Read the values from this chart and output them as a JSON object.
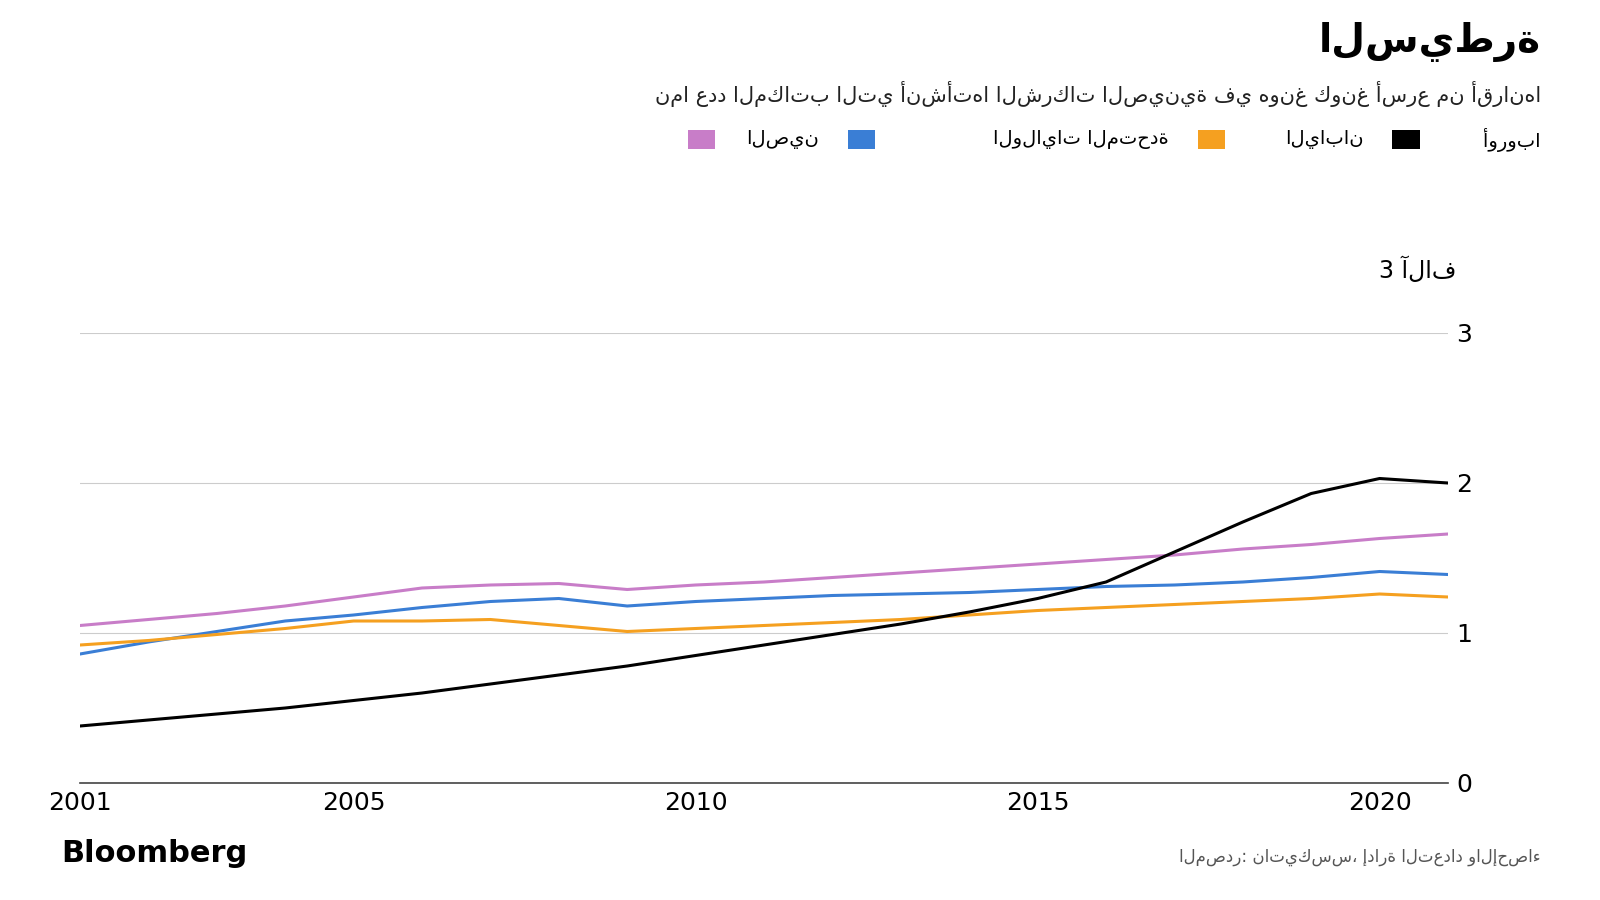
{
  "title": "السيطرة",
  "subtitle": "نما عدد المكاتب التي أنشأتها الشركات الصينية في هونغ كونغ أسرع من أقرانها",
  "source_text": "المصدر: ناتيكسس، إدارة التعداد والإحصاء",
  "bloomberg_text": "Bloomberg",
  "ylabel_text": "3 آلاف",
  "years": [
    2001,
    2002,
    2003,
    2004,
    2005,
    2006,
    2007,
    2008,
    2009,
    2010,
    2011,
    2012,
    2013,
    2014,
    2015,
    2016,
    2017,
    2018,
    2019,
    2020,
    2021
  ],
  "china_data": [
    0.38,
    0.42,
    0.46,
    0.5,
    0.55,
    0.6,
    0.66,
    0.72,
    0.78,
    0.85,
    0.92,
    0.99,
    1.06,
    1.14,
    1.23,
    1.34,
    1.54,
    1.74,
    1.93,
    2.03,
    2.0
  ],
  "us_data": [
    1.05,
    1.09,
    1.13,
    1.18,
    1.24,
    1.3,
    1.32,
    1.33,
    1.29,
    1.32,
    1.34,
    1.37,
    1.4,
    1.43,
    1.46,
    1.49,
    1.52,
    1.56,
    1.59,
    1.63,
    1.66
  ],
  "japan_data": [
    0.86,
    0.94,
    1.01,
    1.08,
    1.12,
    1.17,
    1.21,
    1.23,
    1.18,
    1.21,
    1.23,
    1.25,
    1.26,
    1.27,
    1.29,
    1.31,
    1.32,
    1.34,
    1.37,
    1.41,
    1.39
  ],
  "europe_data": [
    0.92,
    0.95,
    0.99,
    1.03,
    1.08,
    1.08,
    1.09,
    1.05,
    1.01,
    1.03,
    1.05,
    1.07,
    1.09,
    1.12,
    1.15,
    1.17,
    1.19,
    1.21,
    1.23,
    1.26,
    1.24
  ],
  "china_line_color": "#000000",
  "us_line_color": "#c87dc8",
  "japan_line_color": "#3a7ed5",
  "europe_line_color": "#f5a020",
  "background_color": "#ffffff",
  "grid_color": "#cccccc",
  "legend_label_china": "الصين",
  "legend_label_us": "الولايات المتحدة",
  "legend_label_japan": "اليابان",
  "legend_label_europe": "أوروبا",
  "ytick_vals": [
    0,
    1,
    2,
    3
  ],
  "ytick_labels": [
    "0",
    "1",
    "2",
    "3"
  ],
  "xtick_vals": [
    2001,
    2005,
    2010,
    2015,
    2020
  ],
  "xtick_labels": [
    "2001",
    "2005",
    "2010",
    "2015",
    "2020"
  ],
  "ylim": [
    0,
    3.0
  ],
  "xlim": [
    2001,
    2021
  ]
}
